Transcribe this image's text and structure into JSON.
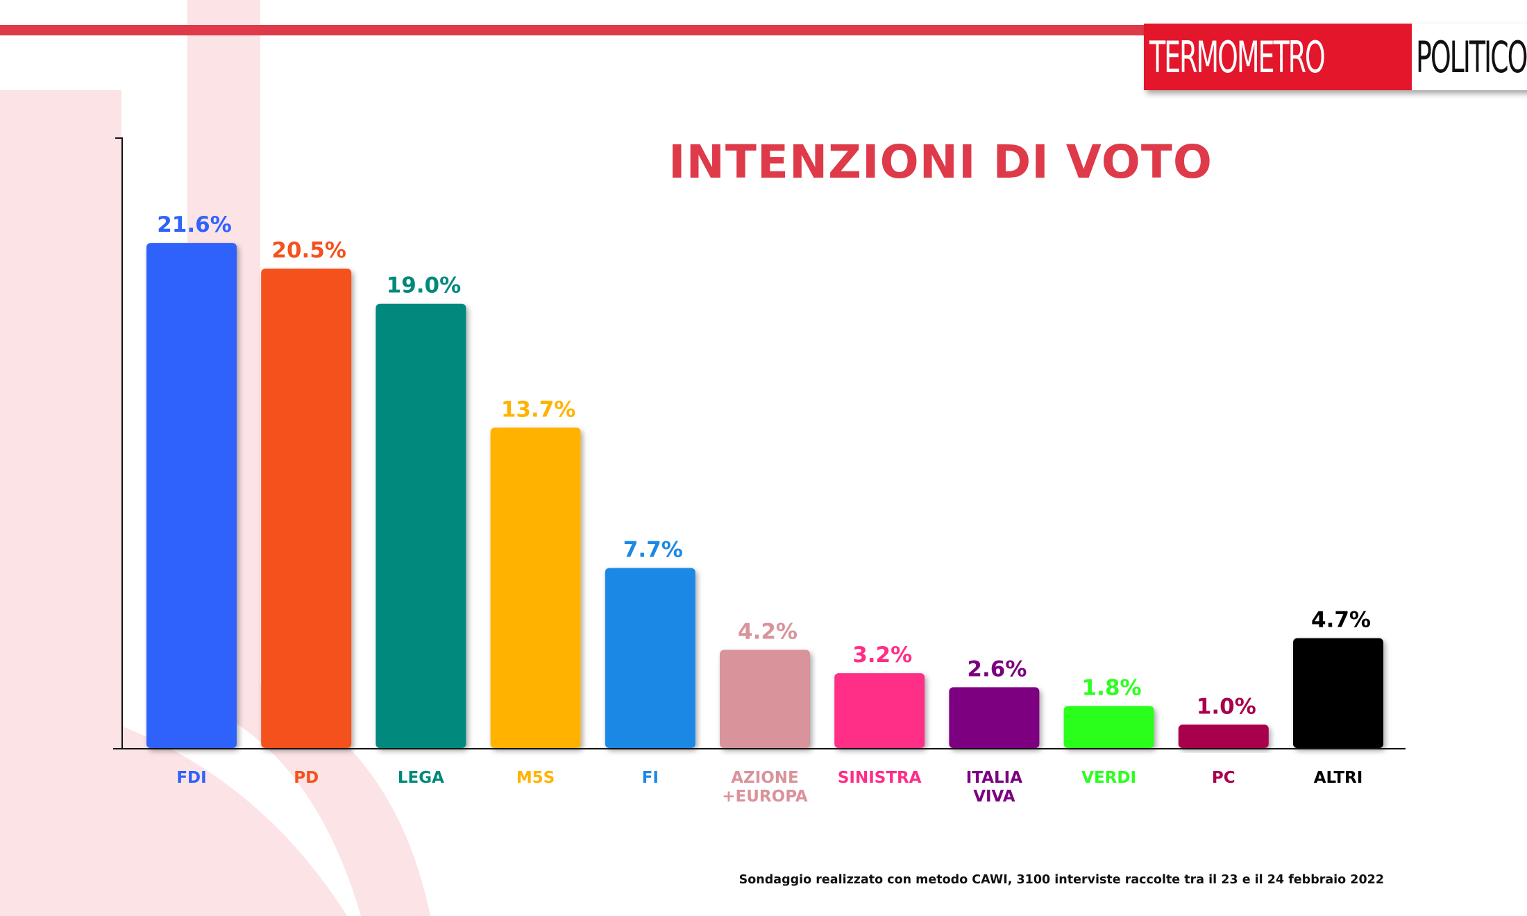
{
  "brand": {
    "logo_part1": "TERMOMETRO",
    "logo_part2": "POLITICO",
    "stripe_color": "#de3a4a",
    "logo_red": "#e3162b"
  },
  "chart_data": {
    "type": "bar",
    "title": "INTENZIONI DI VOTO",
    "xlabel": "",
    "ylabel": "",
    "ylim": [
      0,
      25
    ],
    "grid": false,
    "categories": [
      "FDI",
      "PD",
      "LEGA",
      "M5S",
      "FI",
      "AZIONE\n+EUROPA",
      "SINISTRA",
      "ITALIA\nVIVA",
      "VERDI",
      "PC",
      "ALTRI"
    ],
    "values": [
      21.6,
      20.5,
      19.0,
      13.7,
      7.7,
      4.2,
      3.2,
      2.6,
      1.8,
      1.0,
      4.7
    ],
    "value_labels": [
      "21.6%",
      "20.5%",
      "19.0%",
      "13.7%",
      "7.7%",
      "4.2%",
      "3.2%",
      "2.6%",
      "1.8%",
      "1.0%",
      "4.7%"
    ],
    "colors": [
      "#2e62fb",
      "#f4511e",
      "#00897b",
      "#ffb300",
      "#1e88e5",
      "#d9939b",
      "#ff2d87",
      "#7b0080",
      "#2bff1e",
      "#a8004c",
      "#000000"
    ]
  },
  "footnote": "Sondaggio realizzato con metodo CAWI, 3100 interviste raccolte tra il 23 e il 24 febbraio 2022"
}
